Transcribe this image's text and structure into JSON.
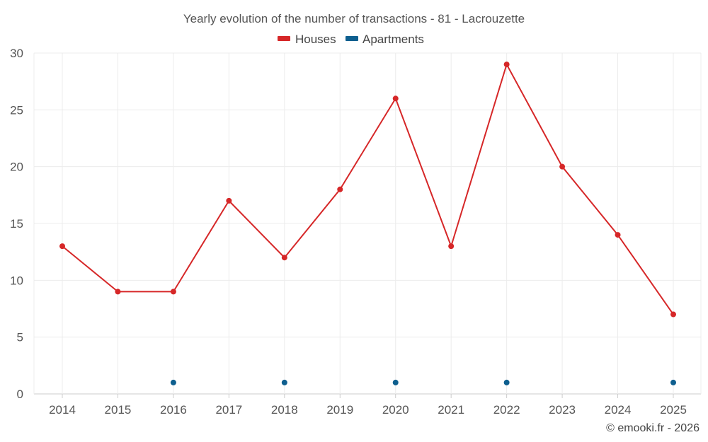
{
  "colors": {
    "houses": "#d62728",
    "apartments": "#0e5f8f"
  },
  "chart_data": {
    "type": "line",
    "title": "Yearly evolution of the number of transactions - 81 - Lacrouzette",
    "xlabel": "",
    "ylabel": "",
    "categories": [
      "2014",
      "2015",
      "2016",
      "2017",
      "2018",
      "2019",
      "2020",
      "2021",
      "2022",
      "2023",
      "2024",
      "2025"
    ],
    "ylim": [
      0,
      30
    ],
    "yticks": [
      0,
      5,
      10,
      15,
      20,
      25,
      30
    ],
    "grid": true,
    "legend_position": "top-center",
    "series": [
      {
        "name": "Houses",
        "style": "line",
        "values": [
          13,
          9,
          9,
          17,
          12,
          18,
          26,
          13,
          29,
          20,
          14,
          7
        ]
      },
      {
        "name": "Apartments",
        "style": "points",
        "values": [
          null,
          null,
          1,
          null,
          1,
          null,
          1,
          null,
          1,
          null,
          null,
          1
        ]
      }
    ]
  },
  "credit": "© emooki.fr - 2026"
}
